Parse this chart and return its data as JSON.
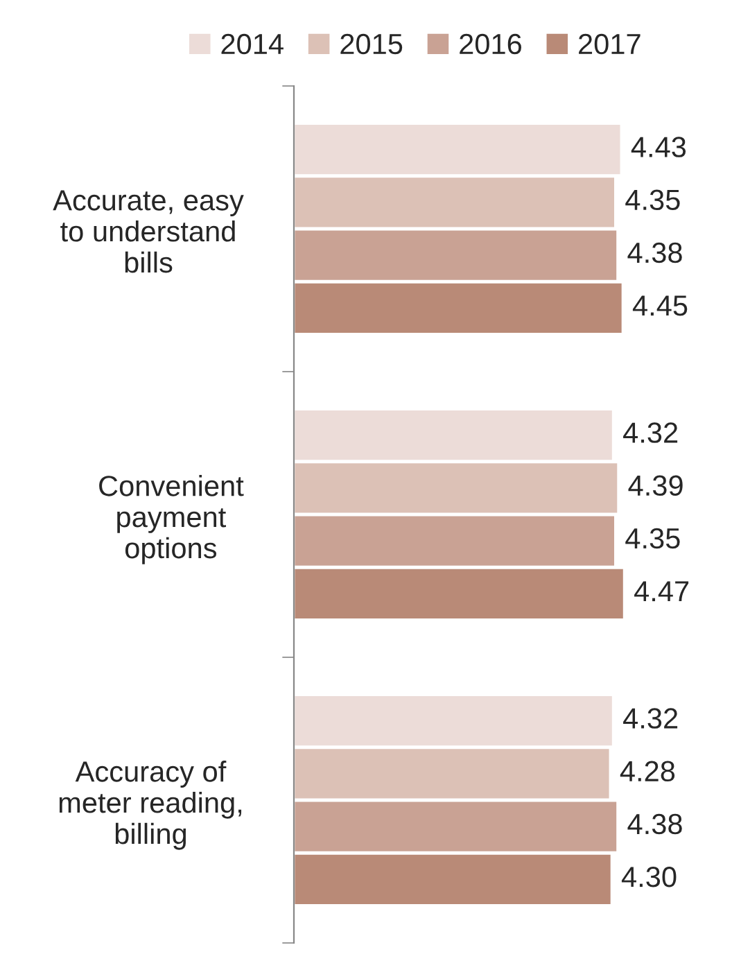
{
  "chart_data": {
    "type": "bar",
    "orientation": "horizontal",
    "categories": [
      "Accurate, easy\nto understand\nbills",
      "Convenient\npayment\noptions",
      "Accuracy of\nmeter reading,\nbilling"
    ],
    "series": [
      {
        "name": "2014",
        "color": "#ecdcd8",
        "values": [
          4.43,
          4.32,
          4.32
        ],
        "value_labels": [
          "4.43",
          "4.32",
          "4.32"
        ]
      },
      {
        "name": "2015",
        "color": "#dcc1b6",
        "values": [
          4.35,
          4.39,
          4.28
        ],
        "value_labels": [
          "4.35",
          "4.39",
          "4.28"
        ]
      },
      {
        "name": "2016",
        "color": "#c9a294",
        "values": [
          4.38,
          4.35,
          4.38
        ],
        "value_labels": [
          "4.38",
          "4.35",
          "4.38"
        ]
      },
      {
        "name": "2017",
        "color": "#b98a77",
        "values": [
          4.45,
          4.47,
          4.3
        ],
        "value_labels": [
          "4.45",
          "4.47",
          "4.30"
        ]
      }
    ],
    "legend": "top",
    "grid": false
  }
}
